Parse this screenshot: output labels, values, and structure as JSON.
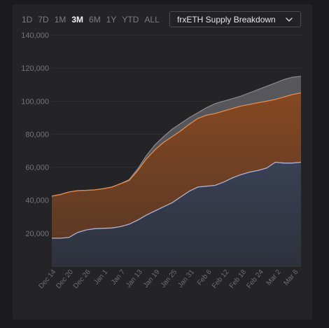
{
  "range_selector": {
    "options": [
      "1D",
      "7D",
      "1M",
      "3M",
      "6M",
      "1Y",
      "YTD",
      "ALL"
    ],
    "selected": "3M"
  },
  "dropdown": {
    "label": "frxETH Supply Breakdown",
    "icon": "chevron-down-icon"
  },
  "colors": {
    "background": "#242427",
    "bottom_series_line": "#aab4dc",
    "bottom_series_fill": "#3a4256",
    "middle_series_line": "#e88a4a",
    "middle_series_fill": "#8a4a22",
    "top_series_line": "#8a8a90",
    "top_series_fill": "#5a5a5f"
  },
  "chart_data": {
    "type": "area",
    "stacked": true,
    "title": "",
    "xlabel": "",
    "ylabel": "",
    "ylim": [
      0,
      140000
    ],
    "yticks": [
      20000,
      40000,
      60000,
      80000,
      100000,
      120000,
      140000
    ],
    "ytick_labels": [
      "20,000",
      "40,000",
      "60,000",
      "80,000",
      "100,000",
      "120,000",
      "140,000"
    ],
    "x_tick_labels": [
      "Dec 14",
      "Dec 20",
      "Dec 26",
      "Jan 1",
      "Jan 7",
      "Jan 13",
      "Jan 19",
      "Jan 25",
      "Jan 31",
      "Feb 6",
      "Feb 12",
      "Feb 18",
      "Feb 24",
      "Mar 2",
      "Mar 8"
    ],
    "grid": true,
    "legend": "none",
    "x": [
      "Dec 14",
      "Dec 17",
      "Dec 20",
      "Dec 23",
      "Dec 26",
      "Dec 29",
      "Jan 1",
      "Jan 4",
      "Jan 7",
      "Jan 10",
      "Jan 13",
      "Jan 16",
      "Jan 19",
      "Jan 22",
      "Jan 25",
      "Jan 28",
      "Jan 31",
      "Feb 3",
      "Feb 6",
      "Feb 9",
      "Feb 12",
      "Feb 15",
      "Feb 18",
      "Feb 21",
      "Feb 24",
      "Feb 27",
      "Mar 2",
      "Mar 5",
      "Mar 8",
      "Mar 11"
    ],
    "series": [
      {
        "values": [
          17000,
          17000,
          17500,
          20500,
          22000,
          22800,
          23000,
          23200,
          24000,
          25500,
          28000,
          31000,
          33500,
          36000,
          38500,
          42000,
          45500,
          48000,
          48500,
          49000,
          51000,
          53500,
          55500,
          57000,
          58000,
          59500,
          63000,
          62500,
          62500,
          63000
        ]
      },
      {
        "values": [
          42500,
          43500,
          45000,
          45800,
          46000,
          46300,
          47000,
          48000,
          50000,
          52000,
          58000,
          65000,
          70500,
          75000,
          78500,
          82000,
          86000,
          89500,
          91500,
          92500,
          94000,
          95500,
          97000,
          98000,
          99000,
          100000,
          101000,
          102500,
          104000,
          105000
        ]
      },
      {
        "values": [
          42500,
          43500,
          45000,
          45800,
          46000,
          46300,
          47000,
          48000,
          50000,
          52500,
          59000,
          67000,
          73500,
          78500,
          83000,
          86500,
          90000,
          93000,
          96000,
          98500,
          100000,
          101500,
          103000,
          105000,
          107000,
          109000,
          111000,
          113000,
          114500,
          115000
        ]
      }
    ]
  }
}
